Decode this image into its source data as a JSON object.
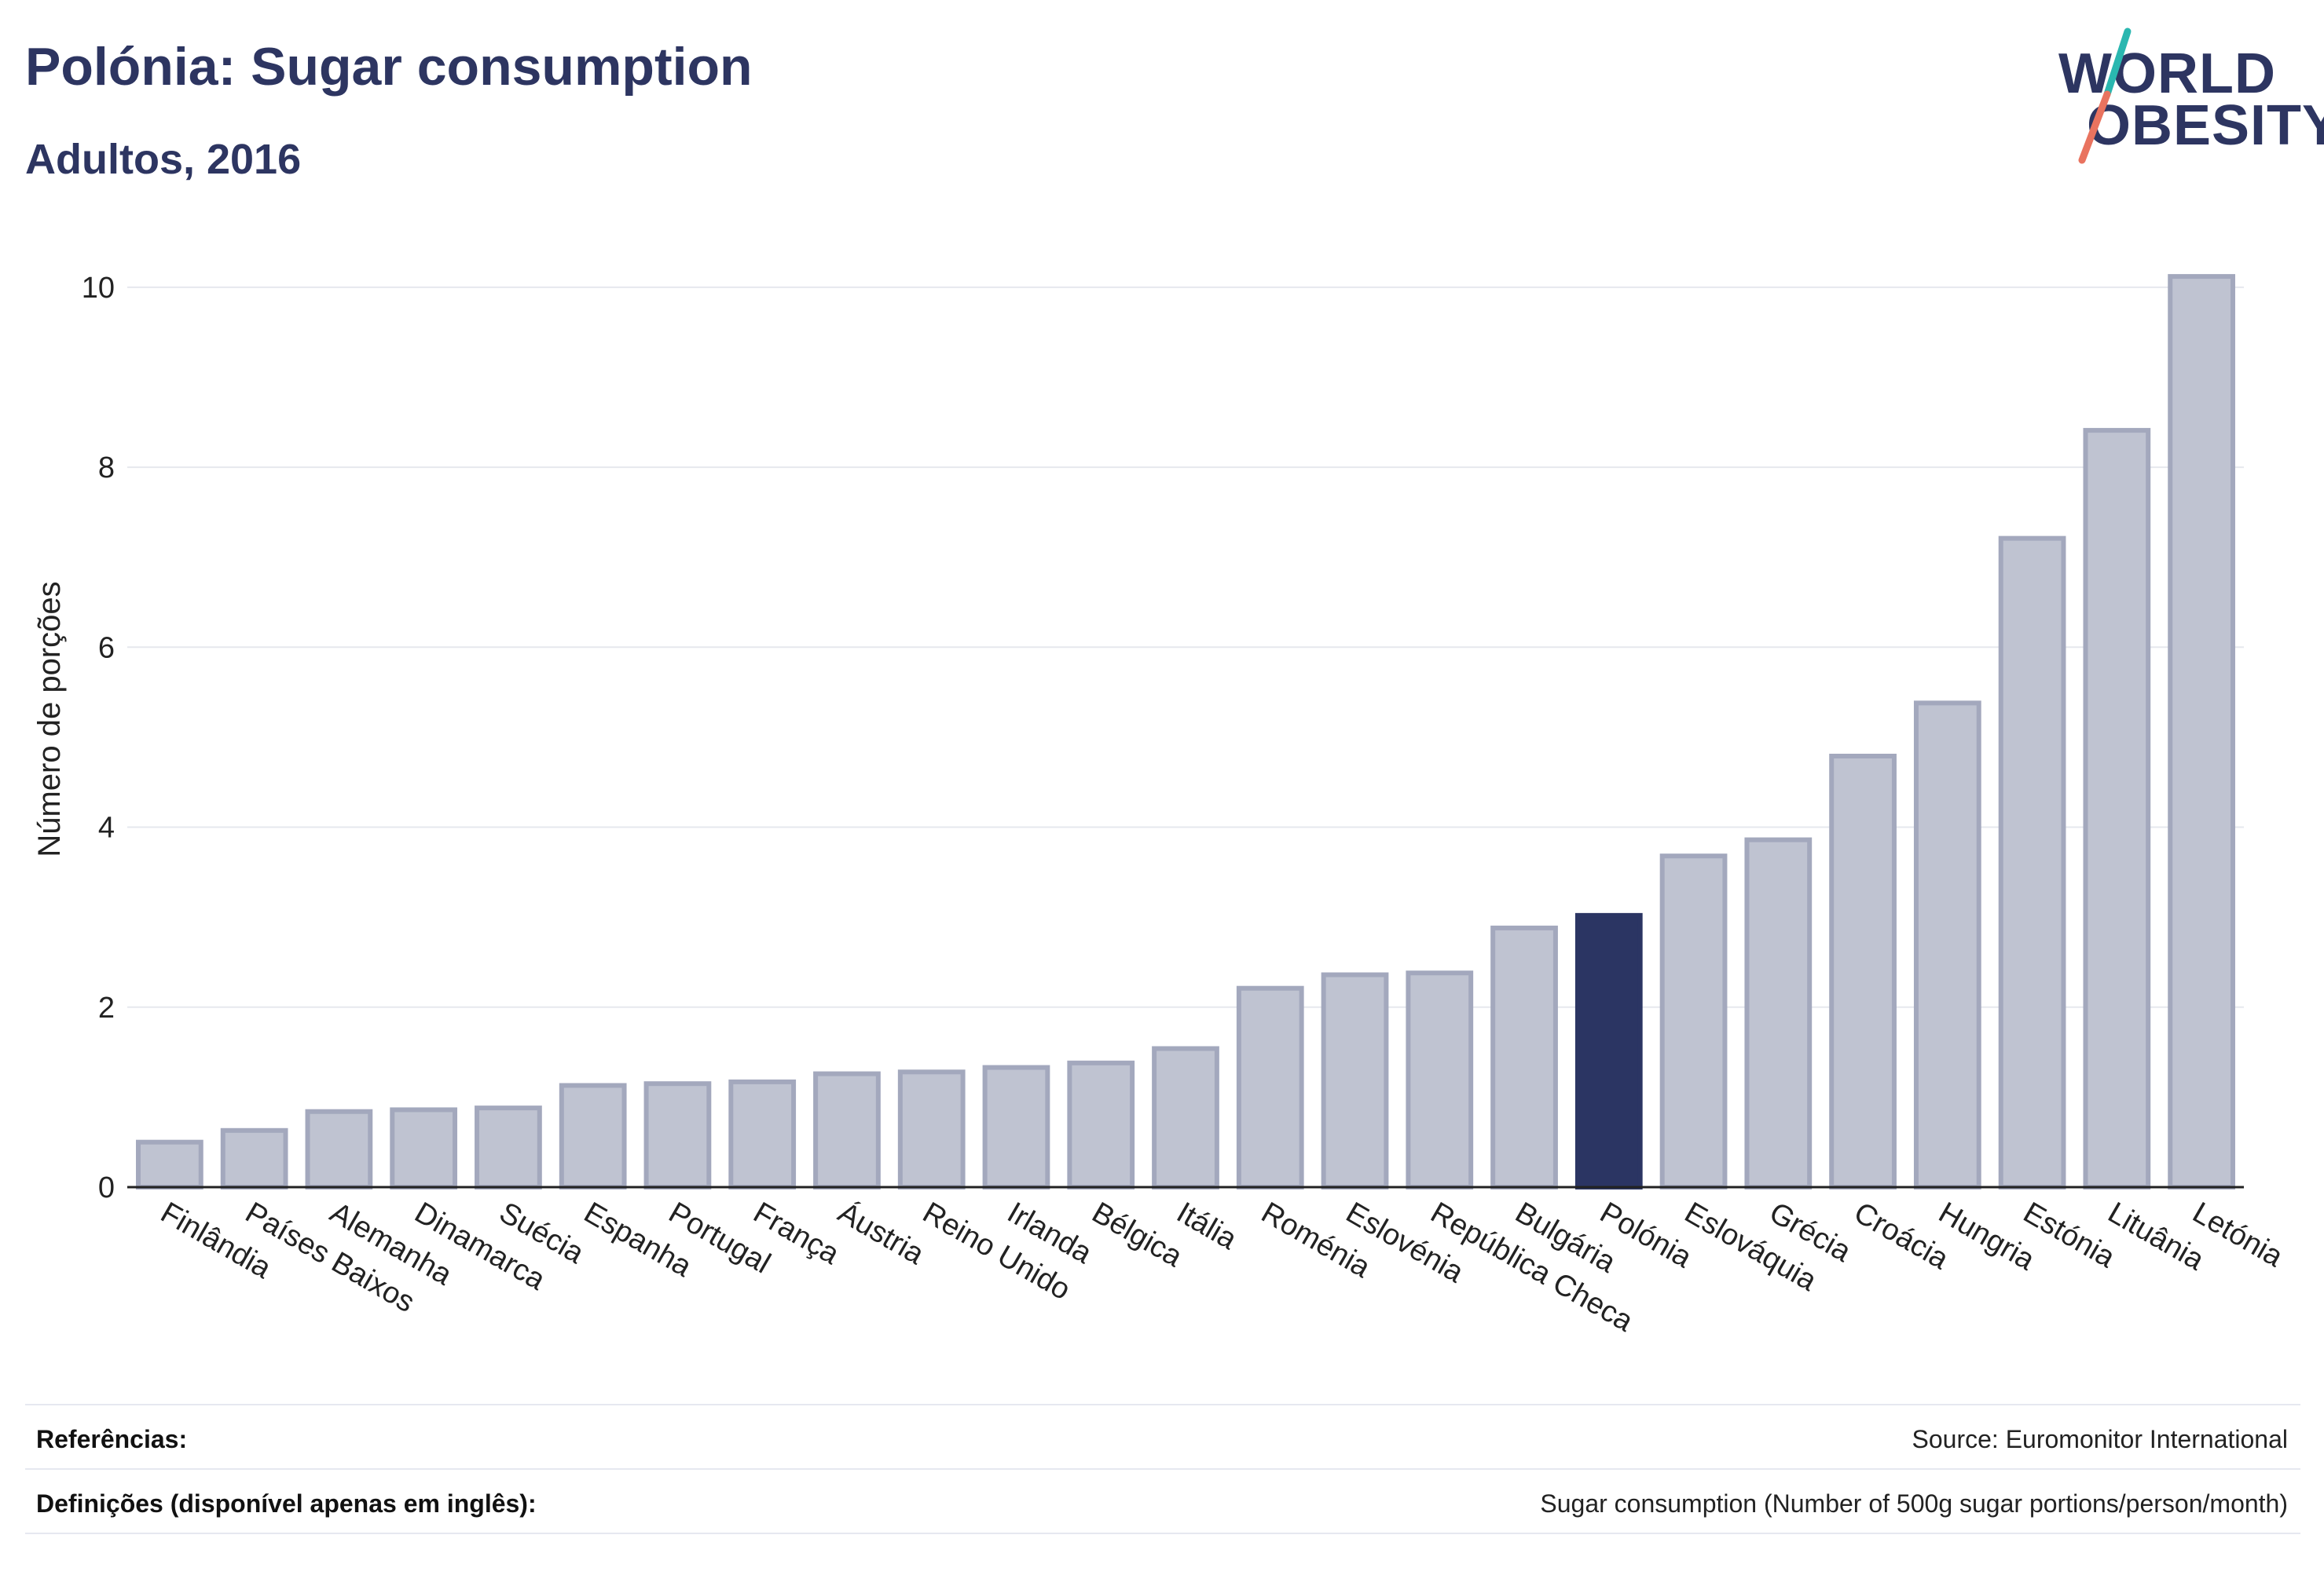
{
  "header": {
    "title": "Polónia: Sugar consumption",
    "subtitle": "Adultos, 2016"
  },
  "logo": {
    "line1": "WORLD",
    "line2": "OBESITY"
  },
  "colors": {
    "highlight": "#2b3563",
    "bar": "#bfc3d1",
    "bar_stroke": "#a3a8bd",
    "grid": "#e6e8ee",
    "logo_teal": "#2ab7b0",
    "logo_coral": "#e9735f"
  },
  "chart_data": {
    "type": "bar",
    "ylabel": "Número de porções",
    "xlabel": "",
    "ylim": [
      0,
      10.4
    ],
    "yticks": [
      0,
      2,
      4,
      6,
      8,
      10
    ],
    "grid": true,
    "highlight": "Polónia",
    "categories": [
      "Finlândia",
      "Países Baixos",
      "Alemanha",
      "Dinamarca",
      "Suécia",
      "Espanha",
      "Portugal",
      "França",
      "Áustria",
      "Reino Unido",
      "Irlanda",
      "Bélgica",
      "Itália",
      "Roménia",
      "Eslovénia",
      "República Checa",
      "Bulgária",
      "Polónia",
      "Eslováquia",
      "Grécia",
      "Croácia",
      "Hungria",
      "Estónia",
      "Lituânia",
      "Letónia"
    ],
    "values": [
      0.5,
      0.63,
      0.84,
      0.86,
      0.88,
      1.13,
      1.15,
      1.17,
      1.26,
      1.28,
      1.33,
      1.38,
      1.54,
      2.21,
      2.36,
      2.38,
      2.88,
      3.02,
      3.68,
      3.86,
      4.79,
      5.38,
      7.21,
      8.41,
      10.12
    ]
  },
  "footer": {
    "references_label": "Referências:",
    "references_value": "Source: Euromonitor International",
    "definitions_label": "Definições (disponível apenas em inglês):",
    "definitions_value": "Sugar consumption (Number of 500g sugar portions/person/month)"
  }
}
